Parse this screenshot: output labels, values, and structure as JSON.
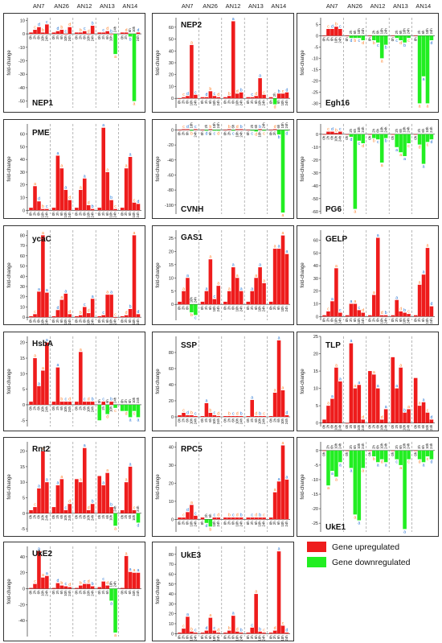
{
  "column_groups": [
    "AN7",
    "AN26",
    "AN12",
    "AN13",
    "AN14"
  ],
  "timepoints": [
    "0h",
    "2h",
    "6h",
    "10h",
    "24h"
  ],
  "ylabel": "fold-change",
  "colors": {
    "up": "#ee1c1c",
    "down": "#22ee22",
    "letter_red": "#ff7f27",
    "letter_blue": "#1f6fd1",
    "divider": "#888888"
  },
  "legend": {
    "up_label": "Gene upregulated",
    "down_label": "Gene downregulated"
  },
  "chart_data": [
    {
      "title": "NEP1",
      "type": "bar",
      "ylim": [
        -55,
        12
      ],
      "yticks": [
        10,
        0,
        -10,
        -20,
        -30,
        -40,
        -50
      ],
      "values": [
        [
          1,
          3,
          5,
          1,
          7
        ],
        [
          1,
          2,
          3,
          0,
          5
        ],
        [
          1,
          1,
          2,
          0,
          6
        ],
        [
          1,
          1,
          2,
          0,
          -15
        ],
        [
          1,
          1,
          -2,
          -50,
          1
        ]
      ]
    },
    {
      "title": "NEP2",
      "type": "bar",
      "ylim": [
        -8,
        68
      ],
      "yticks": [
        60,
        50,
        40,
        30,
        20,
        10,
        0
      ],
      "values": [
        [
          0,
          1,
          2,
          45,
          3
        ],
        [
          1,
          1,
          6,
          2,
          1
        ],
        [
          1,
          2,
          65,
          4,
          5
        ],
        [
          1,
          1,
          2,
          17,
          3
        ],
        [
          1,
          -5,
          4,
          4,
          5
        ]
      ]
    },
    {
      "title": "Egh16",
      "type": "bar",
      "ylim": [
        -32,
        8
      ],
      "yticks": [
        5,
        0,
        -5,
        -10,
        -15,
        -20,
        -25,
        -30
      ],
      "values": [
        [
          0,
          3,
          3,
          4,
          3
        ],
        [
          0,
          -1,
          -1,
          -1,
          -2
        ],
        [
          0,
          -2,
          -3,
          -10,
          -4
        ],
        [
          0,
          -1,
          -2,
          -3,
          -1
        ],
        [
          0,
          -30,
          -18,
          -30,
          -2
        ]
      ]
    },
    {
      "title": "PME",
      "type": "bar",
      "ylim": [
        -3,
        68
      ],
      "yticks": [
        60,
        50,
        40,
        30,
        20,
        10,
        0
      ],
      "values": [
        [
          2,
          19,
          7,
          1,
          1
        ],
        [
          2,
          43,
          33,
          16,
          8
        ],
        [
          2,
          16,
          25,
          4,
          1
        ],
        [
          2,
          65,
          30,
          8,
          1
        ],
        [
          2,
          33,
          42,
          6,
          5
        ]
      ]
    },
    {
      "title": "CVNH",
      "type": "bar",
      "ylim": [
        -112,
        8
      ],
      "yticks": [
        0,
        -20,
        -40,
        -60,
        -80,
        -100
      ],
      "values": [
        [
          0,
          1,
          1,
          -1,
          1
        ],
        [
          0,
          -1,
          1,
          -1,
          -1
        ],
        [
          0,
          1,
          -1,
          1,
          1
        ],
        [
          0,
          -1,
          -2,
          1,
          -1
        ],
        [
          0,
          1,
          -6,
          -110,
          -1
        ]
      ]
    },
    {
      "title": "PG6",
      "type": "bar",
      "ylim": [
        -62,
        8
      ],
      "yticks": [
        0,
        -10,
        -20,
        -30,
        -40,
        -50,
        -60
      ],
      "values": [
        [
          0,
          2,
          2,
          1,
          2
        ],
        [
          0,
          -2,
          -58,
          -5,
          -7
        ],
        [
          0,
          -3,
          -4,
          -22,
          -3
        ],
        [
          0,
          -10,
          -14,
          -17,
          -7
        ],
        [
          0,
          -8,
          -23,
          -6,
          -4
        ]
      ]
    },
    {
      "title": "ycaC",
      "type": "bar",
      "ylim": [
        -3,
        85
      ],
      "yticks": [
        80,
        70,
        60,
        50,
        40,
        30,
        20,
        10,
        0
      ],
      "values": [
        [
          1,
          3,
          25,
          80,
          24
        ],
        [
          1,
          7,
          17,
          23,
          3
        ],
        [
          1,
          2,
          10,
          4,
          18
        ],
        [
          1,
          2,
          22,
          22,
          0
        ],
        [
          1,
          2,
          8,
          80,
          3
        ]
      ]
    },
    {
      "title": "GAS1",
      "type": "bar",
      "ylim": [
        -6,
        28
      ],
      "yticks": [
        25,
        20,
        15,
        10,
        5,
        0
      ],
      "values": [
        [
          1,
          5,
          10,
          -3,
          -4
        ],
        [
          1,
          5,
          17,
          2,
          7
        ],
        [
          1,
          5,
          14,
          10,
          5
        ],
        [
          1,
          5,
          10,
          14,
          8
        ],
        [
          1,
          21,
          21,
          26,
          19
        ]
      ]
    },
    {
      "title": "GELP",
      "type": "bar",
      "ylim": [
        -3,
        68
      ],
      "yticks": [
        60,
        50,
        40,
        30,
        20,
        10,
        0
      ],
      "values": [
        [
          1,
          4,
          12,
          38,
          3
        ],
        [
          1,
          10,
          10,
          5,
          3
        ],
        [
          1,
          17,
          62,
          1,
          1
        ],
        [
          1,
          13,
          4,
          3,
          2
        ],
        [
          1,
          25,
          33,
          54,
          8
        ]
      ]
    },
    {
      "title": "HsbA",
      "type": "bar",
      "ylim": [
        -7,
        22
      ],
      "yticks": [
        20,
        15,
        10,
        5,
        0,
        -5
      ],
      "values": [
        [
          1,
          15,
          6,
          11,
          20
        ],
        [
          1,
          12,
          1,
          1,
          1
        ],
        [
          1,
          17,
          1,
          1,
          1
        ],
        [
          -5,
          1,
          -3,
          1,
          -1
        ],
        [
          -2,
          -2,
          -4,
          -2,
          -4
        ]
      ]
    },
    {
      "title": "SSP",
      "type": "bar",
      "ylim": [
        -12,
        100
      ],
      "yticks": [
        80,
        60,
        40,
        20,
        0
      ],
      "values": [
        [
          2,
          5,
          2,
          2,
          1
        ],
        [
          1,
          17,
          5,
          2,
          1
        ],
        [
          1,
          1,
          1,
          1,
          1
        ],
        [
          1,
          21,
          1,
          1,
          1
        ],
        [
          1,
          30,
          95,
          33,
          2
        ]
      ]
    },
    {
      "title": "TLP",
      "type": "bar",
      "ylim": [
        -1,
        25
      ],
      "yticks": [
        25,
        20,
        15,
        10,
        5,
        0
      ],
      "values": [
        [
          1,
          5,
          7,
          16,
          12
        ],
        [
          0,
          23,
          10,
          11,
          1
        ],
        [
          15,
          14,
          10,
          1,
          4
        ],
        [
          19,
          10,
          16,
          3,
          4
        ],
        [
          13,
          5,
          6,
          3,
          1
        ]
      ]
    },
    {
      "title": "Rnt2",
      "type": "bar",
      "ylim": [
        -6,
        23
      ],
      "yticks": [
        20,
        15,
        10,
        5,
        0,
        -5
      ],
      "values": [
        [
          1,
          2,
          8,
          20,
          10
        ],
        [
          2,
          9,
          11,
          1,
          3
        ],
        [
          11,
          10,
          21,
          1,
          3
        ],
        [
          12,
          9,
          13,
          2,
          -4
        ],
        [
          1,
          10,
          15,
          1,
          -3
        ]
      ]
    },
    {
      "title": "RPC5",
      "type": "bar",
      "ylim": [
        -7,
        43
      ],
      "yticks": [
        40,
        30,
        20,
        10,
        0
      ],
      "values": [
        [
          1,
          1,
          4,
          8,
          2
        ],
        [
          1,
          -2,
          -4,
          1,
          1
        ],
        [
          1,
          1,
          1,
          1,
          1
        ],
        [
          1,
          1,
          1,
          1,
          1
        ],
        [
          1,
          15,
          21,
          41,
          22
        ]
      ]
    },
    {
      "title": "UkE1",
      "type": "bar",
      "ylim": [
        -28,
        3
      ],
      "yticks": [
        0,
        -5,
        -10,
        -15,
        -20,
        -25
      ],
      "values": [
        [
          0,
          -12,
          -7,
          -9,
          -4
        ],
        [
          0,
          -6,
          -22,
          -24,
          -6
        ],
        [
          0,
          -2,
          -4,
          -3,
          -4
        ],
        [
          0,
          -3,
          -5,
          -27,
          -3
        ],
        [
          0,
          -3,
          -4,
          -2,
          -3
        ]
      ]
    },
    {
      "title": "UkE2",
      "type": "bar",
      "ylim": [
        -60,
        53
      ],
      "yticks": [
        40,
        20,
        0,
        -20,
        -40
      ],
      "values": [
        [
          1,
          6,
          47,
          14,
          16
        ],
        [
          1,
          7,
          4,
          3,
          2
        ],
        [
          1,
          4,
          6,
          6,
          3
        ],
        [
          2,
          9,
          4,
          -15,
          -55
        ],
        [
          1,
          41,
          21,
          20,
          20
        ]
      ]
    },
    {
      "title": "UkE3",
      "type": "bar",
      "ylim": [
        -3,
        88
      ],
      "yticks": [
        80,
        70,
        60,
        50,
        40,
        30,
        20,
        10,
        0
      ],
      "values": [
        [
          1,
          5,
          17,
          2,
          1
        ],
        [
          1,
          3,
          16,
          3,
          1
        ],
        [
          1,
          3,
          18,
          2,
          1
        ],
        [
          1,
          6,
          40,
          2,
          1
        ],
        [
          1,
          3,
          83,
          8,
          1
        ]
      ]
    }
  ]
}
